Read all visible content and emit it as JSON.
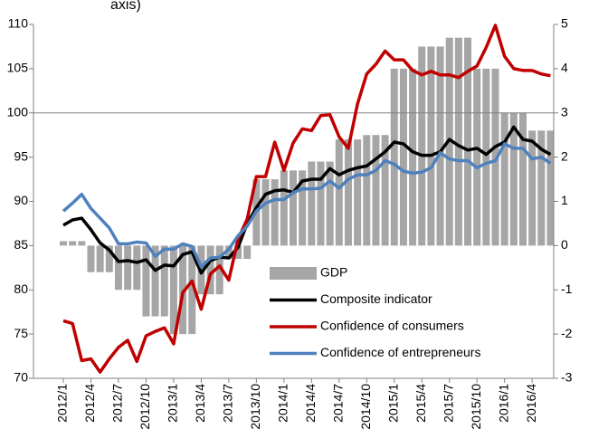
{
  "chart_data": {
    "type": "combo",
    "title": "axis)",
    "categories": [
      "2012/1",
      null,
      null,
      "2012/4",
      null,
      null,
      "2012/7",
      null,
      null,
      "2012/10",
      null,
      null,
      "2013/1",
      null,
      null,
      "2013/4",
      null,
      null,
      "2013/7",
      null,
      null,
      "2013/10",
      null,
      null,
      "2014/1",
      null,
      null,
      "2014/4",
      null,
      null,
      "2014/7",
      null,
      null,
      "2014/10",
      null,
      null,
      "2015/1",
      null,
      null,
      "2015/4",
      null,
      null,
      "2015/7",
      null,
      null,
      "2015/10",
      null,
      null,
      "2016/1",
      null,
      null,
      "2016/4",
      null,
      null
    ],
    "ylim": [
      70,
      110
    ],
    "yticks": [
      70,
      75,
      80,
      85,
      90,
      95,
      100,
      105,
      110
    ],
    "y2lim": [
      -3,
      5
    ],
    "y2ticks": [
      -3,
      -2,
      -1,
      0,
      1,
      2,
      3,
      4,
      5
    ],
    "hline": 100,
    "legend": "lower right",
    "series": [
      {
        "name": "GDP",
        "type": "bar",
        "axis": "y2",
        "color": "#a6a6a6",
        "values": [
          0.1,
          0.1,
          0.1,
          -0.6,
          -0.6,
          -0.6,
          -1.0,
          -1.0,
          -1.0,
          -1.6,
          -1.6,
          -1.6,
          -2.0,
          -2.0,
          -2.0,
          -1.1,
          -1.1,
          -1.1,
          -0.3,
          -0.3,
          -0.3,
          1.5,
          1.5,
          1.5,
          1.7,
          1.7,
          1.7,
          1.9,
          1.9,
          1.9,
          2.4,
          2.4,
          2.4,
          2.5,
          2.5,
          2.5,
          4.0,
          4.0,
          4.0,
          4.5,
          4.5,
          4.5,
          4.7,
          4.7,
          4.7,
          4.0,
          4.0,
          4.0,
          3.0,
          3.0,
          3.0,
          2.6,
          2.6,
          2.6
        ]
      },
      {
        "name": "Composite indicator",
        "type": "line",
        "color": "#000000",
        "values": [
          87.3,
          87.9,
          88.1,
          86.8,
          85.3,
          84.5,
          83.2,
          83.3,
          83.1,
          83.4,
          82.2,
          82.8,
          82.7,
          84.0,
          84.3,
          81.9,
          83.3,
          83.7,
          83.6,
          84.8,
          87.5,
          89.3,
          90.8,
          91.2,
          91.3,
          91.0,
          92.3,
          92.5,
          92.5,
          93.7,
          93.0,
          93.5,
          93.8,
          94.0,
          94.8,
          95.6,
          96.7,
          96.5,
          95.6,
          95.2,
          95.2,
          95.6,
          97.0,
          96.3,
          95.8,
          96.0,
          95.3,
          96.2,
          96.7,
          98.4,
          97.0,
          96.8,
          95.9,
          95.3
        ]
      },
      {
        "name": "Confidence of consumers",
        "type": "line",
        "color": "#c00000",
        "values": [
          76.5,
          76.2,
          72.0,
          72.2,
          70.7,
          72.2,
          73.5,
          74.3,
          71.9,
          74.8,
          75.3,
          75.7,
          73.9,
          79.7,
          81.0,
          77.8,
          81.8,
          82.7,
          81.1,
          85.7,
          88.0,
          92.8,
          92.8,
          96.7,
          93.5,
          96.6,
          98.2,
          98.0,
          99.7,
          99.8,
          97.3,
          96.0,
          101.0,
          104.4,
          105.5,
          107.0,
          106.0,
          106.0,
          104.8,
          104.3,
          104.7,
          104.3,
          104.3,
          104.0,
          104.7,
          105.3,
          107.4,
          109.9,
          106.4,
          105.0,
          104.8,
          104.8,
          104.4,
          104.2
        ]
      },
      {
        "name": "Confidence of entrepreneurs",
        "type": "line",
        "color": "#4f81bd",
        "values": [
          88.9,
          89.8,
          90.8,
          89.2,
          88.1,
          87.0,
          85.2,
          85.2,
          85.4,
          85.3,
          83.8,
          84.6,
          84.6,
          85.2,
          84.9,
          82.6,
          83.6,
          83.7,
          84.6,
          86.1,
          87.2,
          88.9,
          89.8,
          90.2,
          90.2,
          91.0,
          91.4,
          91.4,
          91.5,
          92.3,
          91.5,
          92.5,
          93.0,
          93.0,
          93.5,
          94.6,
          94.2,
          93.4,
          93.2,
          93.3,
          93.8,
          95.5,
          94.8,
          94.6,
          94.6,
          93.8,
          94.3,
          94.6,
          96.5,
          96.0,
          96.0,
          94.8,
          95.0,
          94.3
        ]
      }
    ]
  }
}
